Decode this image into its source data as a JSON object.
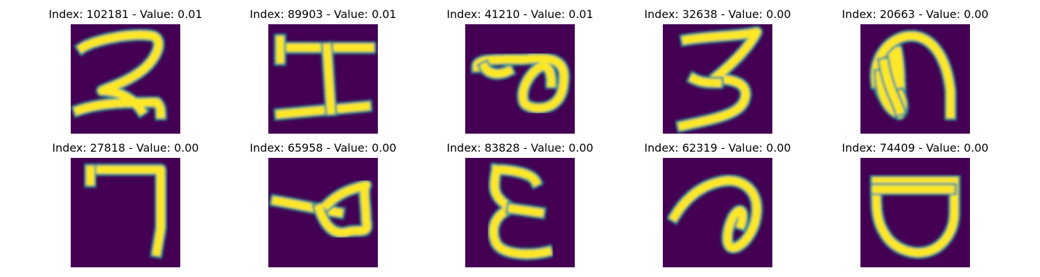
{
  "colors": {
    "background": "#440154",
    "stroke_edge": "#21918c",
    "stroke_core": "#fde725"
  },
  "panels": [
    {
      "index": "102181",
      "value": "0.01",
      "title": "Index: 102181 - Value: 0.01",
      "glyph": "digit-2"
    },
    {
      "index": "89903",
      "value": "0.01",
      "title": "Index: 89903 - Value: 0.01",
      "glyph": "letter-H"
    },
    {
      "index": "41210",
      "value": "0.01",
      "title": "Index: 41210 - Value: 0.01",
      "glyph": "loop-p"
    },
    {
      "index": "32638",
      "value": "0.00",
      "title": "Index: 32638 - Value: 0.00",
      "glyph": "digit-3"
    },
    {
      "index": "20663",
      "value": "0.00",
      "title": "Index: 20663 - Value: 0.00",
      "glyph": "arch-n"
    },
    {
      "index": "27818",
      "value": "0.00",
      "title": "Index: 27818 - Value: 0.00",
      "glyph": "digit-7"
    },
    {
      "index": "65958",
      "value": "0.00",
      "title": "Index: 65958 - Value: 0.00",
      "glyph": "loop-p-thin"
    },
    {
      "index": "83828",
      "value": "0.00",
      "title": "Index: 83828 - Value: 0.00",
      "glyph": "epsilon"
    },
    {
      "index": "62319",
      "value": "0.00",
      "title": "Index: 62319 - Value: 0.00",
      "glyph": "curl"
    },
    {
      "index": "74409",
      "value": "0.00",
      "title": "Index: 74409 - Value: 0.00",
      "glyph": "cup"
    }
  ]
}
